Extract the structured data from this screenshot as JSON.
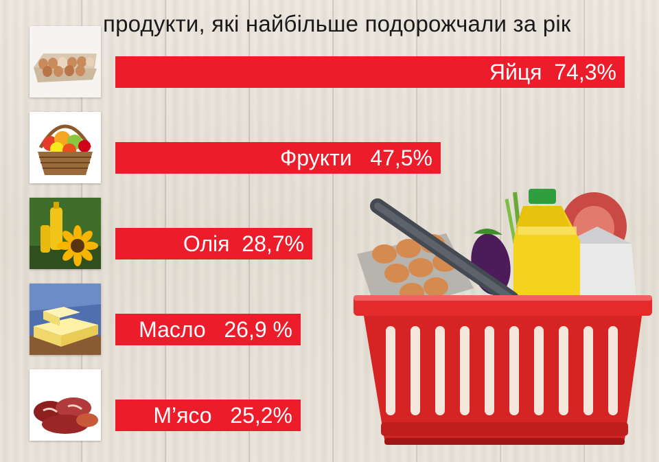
{
  "chart_data": {
    "type": "bar",
    "orientation": "horizontal",
    "title": "продукти, які найбільше подорожчали за рік",
    "categories": [
      "Яйця",
      "Фрукти",
      "Олія",
      "Масло",
      "М’ясо"
    ],
    "values": [
      74.3,
      47.5,
      28.7,
      26.9,
      25.2
    ],
    "labels": [
      "Яйця  74,3%",
      "Фрукти   47,5%",
      "Олія  28,7%",
      "Масло   26,9 %",
      "М’ясо   25,2%"
    ],
    "unit": "%",
    "bar_color": "#ec1c2b",
    "label_color": "#ffffff",
    "xlim": [
      0,
      74.3
    ],
    "grid": false,
    "legend": "none"
  },
  "icons": [
    "eggs-icon",
    "fruit-basket-icon",
    "sunflower-oil-icon",
    "butter-icon",
    "meat-icon",
    "grocery-basket-icon"
  ]
}
